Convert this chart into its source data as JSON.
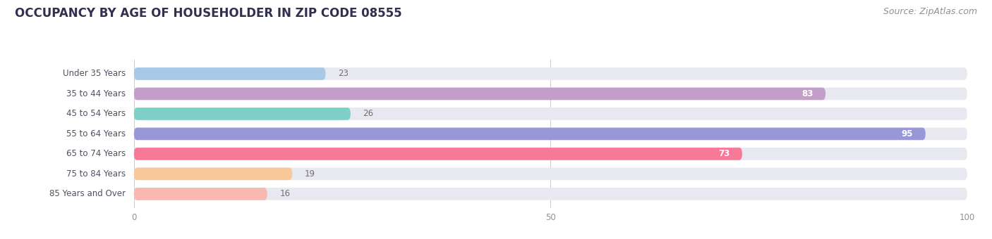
{
  "title": "OCCUPANCY BY AGE OF HOUSEHOLDER IN ZIP CODE 08555",
  "source": "Source: ZipAtlas.com",
  "categories": [
    "Under 35 Years",
    "35 to 44 Years",
    "45 to 54 Years",
    "55 to 64 Years",
    "65 to 74 Years",
    "75 to 84 Years",
    "85 Years and Over"
  ],
  "values": [
    23,
    83,
    26,
    95,
    73,
    19,
    16
  ],
  "bar_colors": [
    "#a8c8e8",
    "#c49ec8",
    "#7dcfc8",
    "#9898d8",
    "#f87898",
    "#f8c898",
    "#f8b8b0"
  ],
  "bar_bg_color": "#e8e8f0",
  "xlim": [
    0,
    100
  ],
  "title_fontsize": 12,
  "title_color": "#303050",
  "source_fontsize": 9,
  "source_color": "#909090",
  "label_fontsize": 8.5,
  "label_color": "#505060",
  "value_color_inside": "#ffffff",
  "value_color_outside": "#707070",
  "background_color": "#ffffff",
  "bar_height": 0.62,
  "gridcolor": "#cccccc",
  "threshold": 50
}
